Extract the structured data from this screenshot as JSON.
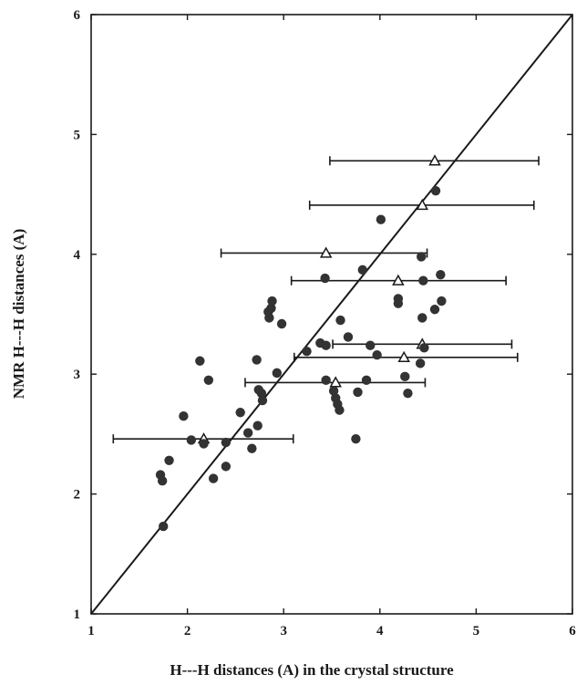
{
  "chart_data": {
    "type": "scatter",
    "title": "",
    "xlabel": "H---H distances (A) in the crystal structure",
    "ylabel": "NMR H---H distances (A)",
    "xlim": [
      1,
      6
    ],
    "ylim": [
      1,
      6
    ],
    "xticks": [
      "1",
      "2",
      "3",
      "4",
      "5",
      "6"
    ],
    "yticks": [
      "1",
      "2",
      "3",
      "4",
      "5",
      "6"
    ],
    "grid": false,
    "legend": "none",
    "reference_line": {
      "x": [
        1,
        6
      ],
      "y": [
        1,
        6
      ]
    },
    "colors": {
      "points": "#333333",
      "line": "#1a1a1a"
    },
    "series": [
      {
        "marker": "filled-circle",
        "x": [
          1.74,
          1.72,
          1.75,
          1.81,
          1.96,
          2.04,
          2.13,
          2.17,
          2.22,
          2.27,
          2.4,
          2.4,
          2.55,
          2.63,
          2.67,
          2.72,
          2.73,
          2.74,
          2.77,
          2.78,
          2.85,
          2.87,
          2.88,
          2.84,
          2.93,
          2.98,
          3.24,
          3.38,
          3.43,
          3.44,
          3.44,
          3.52,
          3.54,
          3.56,
          3.58,
          3.59,
          3.67,
          3.75,
          3.77,
          3.82,
          3.86,
          3.9,
          3.97,
          4.01,
          4.19,
          4.19,
          4.26,
          4.29,
          4.42,
          4.43,
          4.45,
          4.44,
          4.46,
          4.57,
          4.58,
          4.63,
          4.64
        ],
        "y": [
          2.11,
          2.16,
          1.73,
          2.28,
          2.65,
          2.45,
          3.11,
          2.42,
          2.95,
          2.13,
          2.23,
          2.43,
          2.68,
          2.51,
          2.38,
          3.12,
          2.57,
          2.87,
          2.84,
          2.78,
          3.47,
          3.55,
          3.61,
          3.52,
          3.01,
          3.42,
          3.19,
          3.26,
          3.8,
          3.24,
          2.95,
          2.86,
          2.8,
          2.75,
          2.7,
          3.45,
          3.31,
          2.46,
          2.85,
          3.87,
          2.95,
          3.24,
          3.16,
          4.29,
          3.63,
          3.59,
          2.98,
          2.84,
          3.09,
          3.98,
          3.78,
          3.47,
          3.22,
          3.54,
          4.53,
          3.83,
          3.61
        ]
      },
      {
        "marker": "open-triangle",
        "x": [
          4.57,
          4.44,
          3.44,
          4.19,
          4.44,
          4.25,
          3.54,
          2.17
        ],
        "y": [
          4.78,
          4.41,
          4.01,
          3.78,
          3.25,
          3.14,
          2.93,
          2.46
        ],
        "xerr_low": [
          3.48,
          3.27,
          2.35,
          3.08,
          3.51,
          3.11,
          2.6,
          1.23
        ],
        "xerr_high": [
          5.65,
          5.6,
          4.49,
          5.31,
          5.37,
          5.43,
          4.47,
          3.1
        ]
      }
    ]
  }
}
